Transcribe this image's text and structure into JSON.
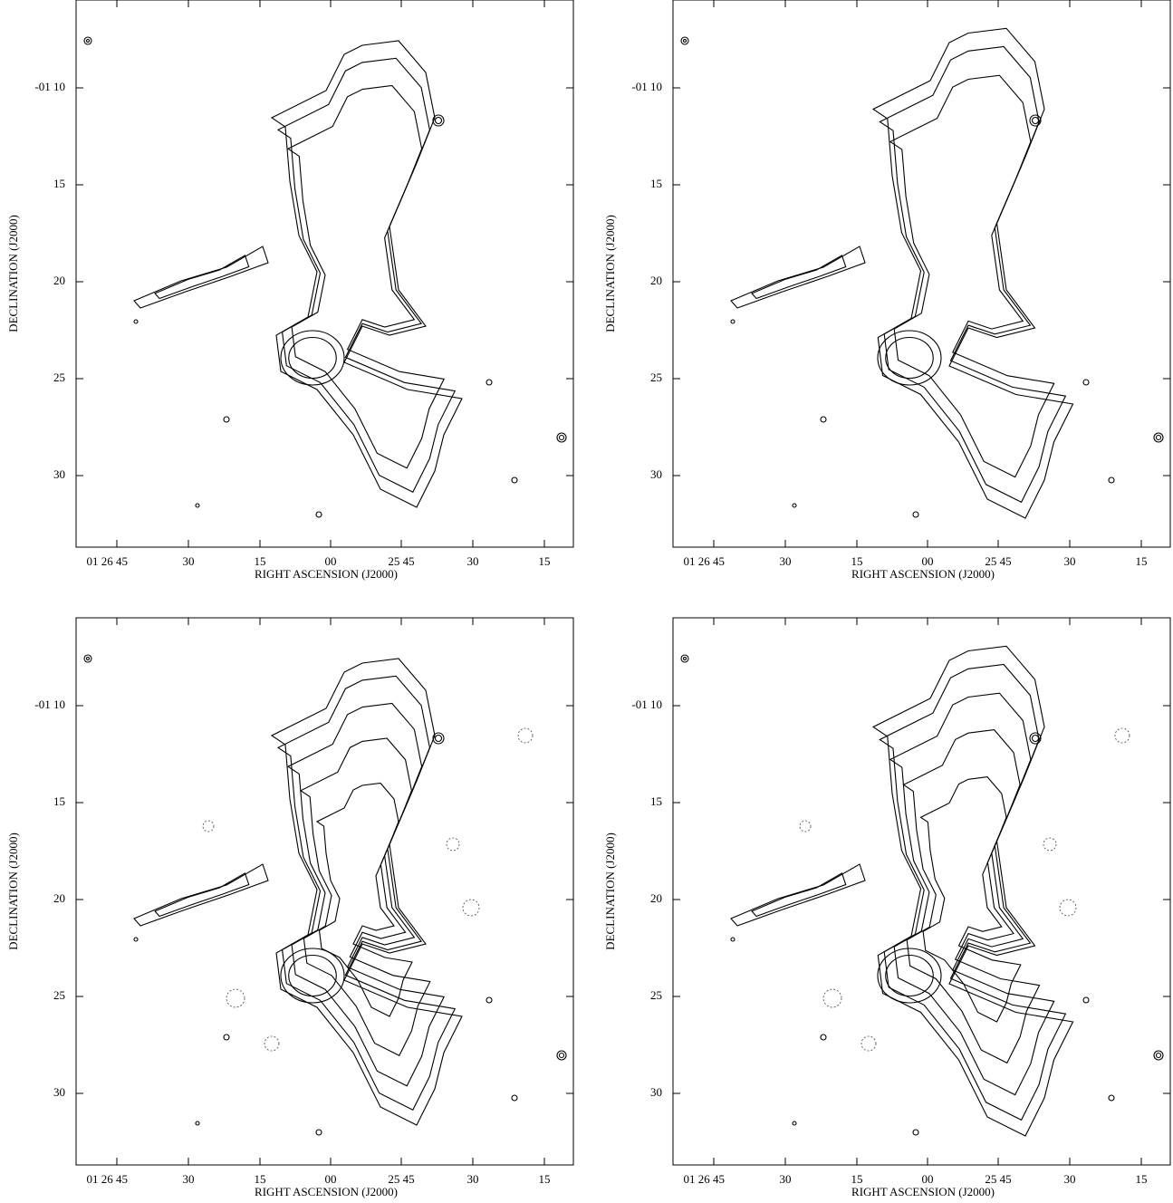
{
  "panels": [
    {
      "x_axis": {
        "label": "RIGHT ASCENSION (J2000)",
        "ticks": [
          "01 26 45",
          "30",
          "15",
          "00",
          "25 45",
          "30",
          "15"
        ]
      },
      "y_axis": {
        "label": "DECLINATION (J2000)",
        "ticks": [
          "-01 10",
          "15",
          "20",
          "25",
          "30"
        ]
      }
    },
    {
      "x_axis": {
        "label": "RIGHT ASCENSION (J2000)",
        "ticks": [
          "01 26 45",
          "30",
          "15",
          "00",
          "25 45",
          "30",
          "15"
        ]
      },
      "y_axis": {
        "label": "DECLINATION (J2000)",
        "ticks": [
          "-01 10",
          "15",
          "20",
          "25",
          "30"
        ]
      }
    },
    {
      "x_axis": {
        "label": "RIGHT ASCENSION (J2000)",
        "ticks": [
          "01 26 45",
          "30",
          "15",
          "00",
          "25 45",
          "30",
          "15"
        ]
      },
      "y_axis": {
        "label": "DECLINATION (J2000)",
        "ticks": [
          "-01 10",
          "15",
          "20",
          "25",
          "30"
        ]
      }
    },
    {
      "x_axis": {
        "label": "RIGHT ASCENSION (J2000)",
        "ticks": [
          "01 26 45",
          "30",
          "15",
          "00",
          "25 45",
          "30",
          "15"
        ]
      },
      "y_axis": {
        "label": "DECLINATION (J2000)",
        "ticks": [
          "-01 10",
          "15",
          "20",
          "25",
          "30"
        ]
      }
    }
  ]
}
